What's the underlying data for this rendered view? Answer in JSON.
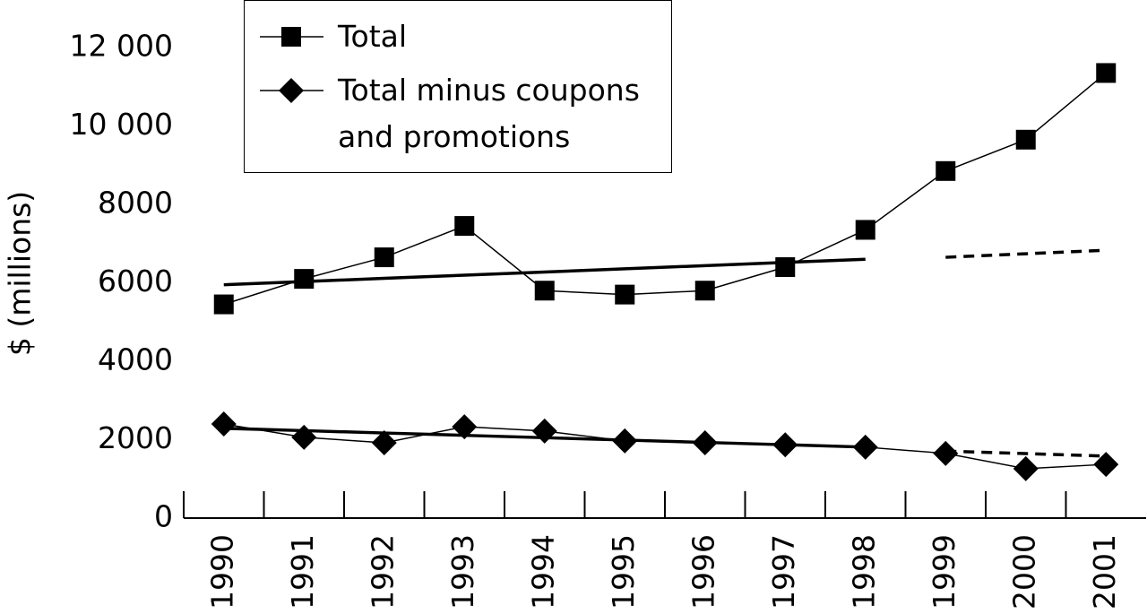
{
  "chart_data": {
    "type": "line",
    "y_label": "$ (millions)",
    "categories": [
      "1990",
      "1991",
      "1992",
      "1993",
      "1994",
      "1995",
      "1996",
      "1997",
      "1998",
      "1999",
      "2000",
      "2001"
    ],
    "ylim": [
      0,
      12000
    ],
    "yticks": [
      0,
      2000,
      4000,
      6000,
      8000,
      {
        "value": 10000,
        "label": "10 000"
      },
      {
        "value": 12000,
        "label": "12 000"
      }
    ],
    "legend": "top-left",
    "series": [
      {
        "name": "Total",
        "color": "#000000",
        "marker": "square",
        "style": "solid",
        "values": [
          5450,
          6100,
          6650,
          7450,
          5800,
          5700,
          5800,
          6400,
          7350,
          8850,
          9650,
          11350
        ]
      },
      {
        "name": "Total minus coupons and promotions",
        "color": "#000000",
        "marker": "diamond",
        "style": "solid",
        "values": [
          2400,
          2060,
          1920,
          2330,
          2220,
          1970,
          1920,
          1870,
          1810,
          1650,
          1260,
          1370
        ]
      }
    ],
    "trend_lines": [
      {
        "color": "#000000",
        "style": "solid",
        "values": [
          5950,
          6031,
          6113,
          6194,
          6275,
          6356,
          6438,
          6519,
          6600,
          null,
          null,
          null
        ]
      },
      {
        "color": "#000000",
        "style": "dashed",
        "values": [
          null,
          null,
          null,
          null,
          null,
          null,
          null,
          null,
          null,
          6650,
          6740,
          6830
        ]
      },
      {
        "color": "#000000",
        "style": "solid",
        "values": [
          2290,
          2230,
          2170,
          2110,
          2050,
          1990,
          1930,
          1870,
          1810,
          null,
          null,
          null
        ]
      },
      {
        "color": "#000000",
        "style": "dashed",
        "values": [
          null,
          null,
          null,
          null,
          null,
          null,
          null,
          null,
          null,
          1710,
          1645,
          1580
        ]
      }
    ]
  }
}
